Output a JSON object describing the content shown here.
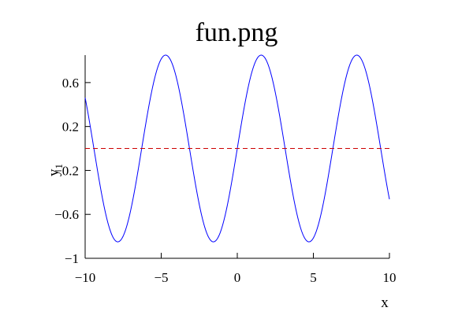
{
  "chart_data": {
    "type": "line",
    "title": "fun.png",
    "xlabel": "x",
    "ylabel": "y",
    "ylabel_subscript": "1",
    "xlim": [
      -10,
      10
    ],
    "ylim": [
      -1,
      0.85
    ],
    "x_ticks": [
      -10,
      -5,
      0,
      5,
      10
    ],
    "x_tick_labels": [
      "−10",
      "−5",
      "0",
      "5",
      "10"
    ],
    "y_ticks": [
      -1,
      -0.6,
      -0.2,
      0.2,
      0.6
    ],
    "y_tick_labels": [
      "−1",
      "−0.6",
      "−0.2",
      "0.2",
      "0.6"
    ],
    "grid": false,
    "series": [
      {
        "function": "0.85*sin(x)",
        "color": "#0000ff",
        "line_style": "solid",
        "x": [
          -10,
          -9.5,
          -9,
          -8.5,
          -8,
          -7.5,
          -7,
          -6.5,
          -6,
          -5.5,
          -5,
          -4.5,
          -4,
          -3.5,
          -3,
          -2.5,
          -2,
          -1.5,
          -1,
          -0.5,
          0,
          0.5,
          1,
          1.5,
          2,
          2.5,
          3,
          3.5,
          4,
          4.5,
          5,
          5.5,
          6,
          6.5,
          7,
          7.5,
          8,
          8.5,
          9,
          9.5,
          10
        ],
        "y": [
          0.462,
          0.064,
          -0.35,
          -0.682,
          -0.841,
          -0.796,
          -0.558,
          -0.183,
          0.238,
          0.602,
          0.815,
          0.83,
          0.643,
          0.298,
          -0.12,
          -0.509,
          -0.773,
          -0.848,
          -0.715,
          -0.408,
          0.0,
          0.408,
          0.715,
          0.848,
          0.773,
          0.509,
          0.12,
          -0.298,
          -0.643,
          -0.83,
          -0.815,
          -0.602,
          -0.238,
          0.183,
          0.558,
          0.796,
          0.841,
          0.682,
          0.35,
          -0.064,
          -0.462
        ]
      },
      {
        "function": "y = 0",
        "color": "#cc0000",
        "line_style": "dashed",
        "x": [
          -10,
          10
        ],
        "y": [
          0,
          0
        ]
      }
    ]
  }
}
